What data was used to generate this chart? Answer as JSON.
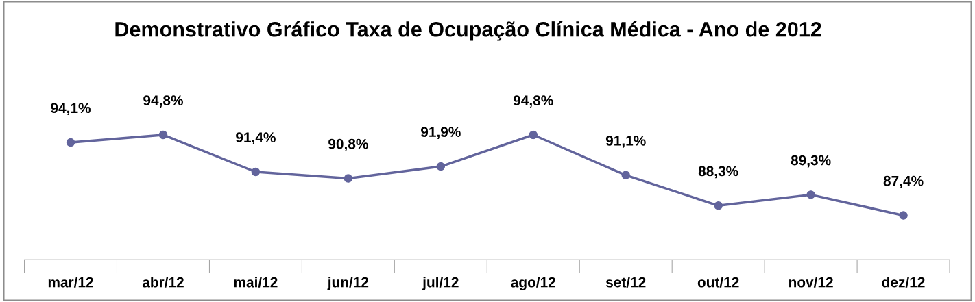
{
  "chart_data": {
    "type": "line",
    "title": "Demonstrativo Gráfico Taxa de Ocupação Clínica Médica - Ano de 2012",
    "categories": [
      "mar/12",
      "abr/12",
      "mai/12",
      "jun/12",
      "jul/12",
      "ago/12",
      "set/12",
      "out/12",
      "nov/12",
      "dez/12"
    ],
    "series": [
      {
        "color": "#62649c",
        "values": [
          94.1,
          94.8,
          91.4,
          90.8,
          91.9,
          94.8,
          91.1,
          88.3,
          89.3,
          87.4
        ],
        "value_labels": [
          "94,1%",
          "94,8%",
          "91,4%",
          "90,8%",
          "91,9%",
          "94,8%",
          "91,1%",
          "88,3%",
          "89,3%",
          "87,4%"
        ]
      }
    ],
    "tick_labels": "x",
    "marker": "circle",
    "line_style": "solid",
    "grid": false,
    "legend": false
  }
}
